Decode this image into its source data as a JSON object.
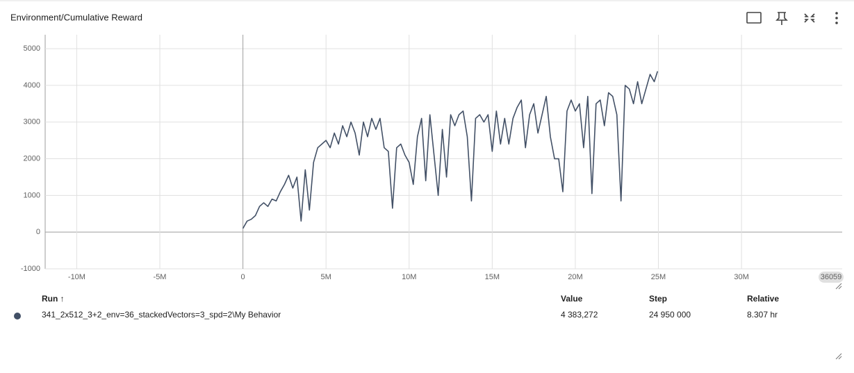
{
  "header": {
    "title": "Environment/Cumulative Reward"
  },
  "chart_data": {
    "type": "line",
    "color": "#425066",
    "grid": true,
    "x": [
      0,
      250000,
      500000,
      750000,
      1000000,
      1250000,
      1500000,
      1750000,
      2000000,
      2250000,
      2500000,
      2750000,
      3000000,
      3250000,
      3500000,
      3750000,
      4000000,
      4250000,
      4500000,
      4750000,
      5000000,
      5250000,
      5500000,
      5750000,
      6000000,
      6250000,
      6500000,
      6750000,
      7000000,
      7250000,
      7500000,
      7750000,
      8000000,
      8250000,
      8500000,
      8750000,
      9000000,
      9250000,
      9500000,
      9750000,
      10000000,
      10250000,
      10500000,
      10750000,
      11000000,
      11250000,
      11500000,
      11750000,
      12000000,
      12250000,
      12500000,
      12750000,
      13000000,
      13250000,
      13500000,
      13750000,
      14000000,
      14250000,
      14500000,
      14750000,
      15000000,
      15250000,
      15500000,
      15750000,
      16000000,
      16250000,
      16500000,
      16750000,
      17000000,
      17250000,
      17500000,
      17750000,
      18000000,
      18250000,
      18500000,
      18750000,
      19000000,
      19250000,
      19500000,
      19750000,
      20000000,
      20250000,
      20500000,
      20750000,
      21000000,
      21250000,
      21500000,
      21750000,
      22000000,
      22250000,
      22500000,
      22750000,
      23000000,
      23250000,
      23500000,
      23750000,
      24000000,
      24250000,
      24500000,
      24750000,
      24950000
    ],
    "values": [
      100,
      300,
      350,
      450,
      700,
      800,
      700,
      900,
      850,
      1100,
      1300,
      1550,
      1200,
      1500,
      300,
      1700,
      600,
      1900,
      2300,
      2400,
      2500,
      2300,
      2700,
      2400,
      2900,
      2600,
      3000,
      2700,
      2100,
      3000,
      2600,
      3100,
      2800,
      3100,
      2300,
      2200,
      650,
      2300,
      2400,
      2100,
      1900,
      1300,
      2600,
      3100,
      1400,
      3200,
      2100,
      1000,
      2800,
      1500,
      3200,
      2900,
      3200,
      3300,
      2600,
      850,
      3100,
      3200,
      3000,
      3200,
      2200,
      3300,
      2400,
      3100,
      2400,
      3100,
      3400,
      3600,
      2300,
      3200,
      3500,
      2700,
      3200,
      3700,
      2600,
      2000,
      2000,
      1100,
      3300,
      3600,
      3300,
      3500,
      2300,
      3700,
      1050,
      3500,
      3600,
      2900,
      3800,
      3700,
      3200,
      850,
      4000,
      3900,
      3500,
      4100,
      3500,
      3900,
      4300,
      4100,
      4383.272
    ],
    "xlim": [
      -11900000,
      36059000
    ],
    "xticks": [
      {
        "value": -10000000,
        "label": "-10M"
      },
      {
        "value": -5000000,
        "label": "-5M"
      },
      0,
      {
        "value": 5000000,
        "label": "5M"
      },
      {
        "value": 10000000,
        "label": "10M"
      },
      {
        "value": 15000000,
        "label": "15M"
      },
      {
        "value": 20000000,
        "label": "20M"
      },
      {
        "value": 25000000,
        "label": "25M"
      },
      {
        "value": 30000000,
        "label": "30M"
      },
      {
        "value": 36059000,
        "label": "36059"
      }
    ],
    "ylim": [
      -1000,
      5380
    ],
    "yticks": [
      -1000,
      0,
      1000,
      2000,
      3000,
      4000,
      5000
    ]
  },
  "table": {
    "headers": [
      "Run ↑",
      "Value",
      "Step",
      "Relative"
    ],
    "rows": [
      [
        "341_2x512_3+2_env=36_stackedVectors=3_spd=2\\My Behavior",
        "4 383,272",
        "24 950 000",
        "8.307 hr"
      ]
    ]
  }
}
